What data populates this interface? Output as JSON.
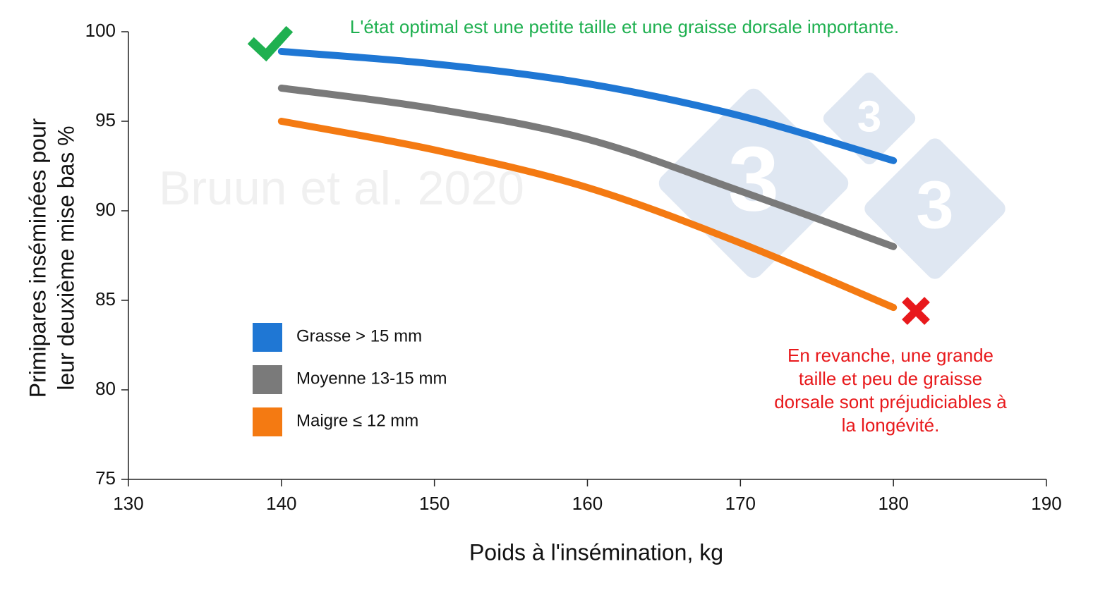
{
  "chart_data": {
    "type": "line",
    "watermark": "Bruun et al. 2020",
    "logo_text": "3",
    "annotation_top": "L'état optimal est une petite taille et une graisse dorsale importante.",
    "annotation_bottom": [
      "En revanche, une grande",
      "taille et peu de graisse",
      "dorsale sont préjudiciables à",
      "la longévité."
    ],
    "x_label": "Poids à l'insémination, kg",
    "y_label": [
      "Primipares inséminées pour",
      "leur deuxième mise bas %"
    ],
    "x": [
      140,
      150,
      160,
      170,
      180
    ],
    "series": [
      {
        "name": "Grasse > 15 mm",
        "color": "#1f77d4",
        "values": [
          98.9,
          98.2,
          97.1,
          95.3,
          92.8
        ]
      },
      {
        "name": "Moyenne 13-15 mm",
        "color": "#7a7a7a",
        "values": [
          96.85,
          95.7,
          94.0,
          91.1,
          88.0
        ]
      },
      {
        "name": "Maigre ≤ 12 mm",
        "color": "#f47a12",
        "values": [
          95.0,
          93.4,
          91.3,
          88.2,
          84.6
        ]
      }
    ],
    "xlim": [
      130,
      190
    ],
    "xticks": [
      130,
      140,
      150,
      160,
      170,
      180,
      190
    ],
    "ylim": [
      75,
      100
    ],
    "yticks": [
      75,
      80,
      85,
      90,
      95,
      100
    ],
    "grid": false
  }
}
